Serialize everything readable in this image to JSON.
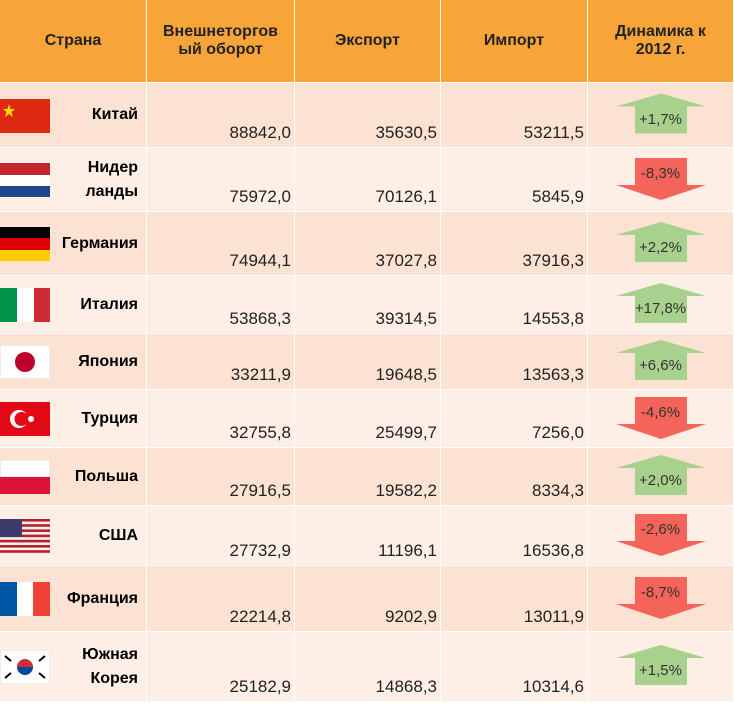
{
  "table": {
    "header": [
      "Страна",
      "Внешнеторгов\nый оборот",
      "Экспорт",
      "Импорт",
      "Динамика к\n2012 г."
    ],
    "rows": [
      {
        "country": "Китай",
        "turnover": "88842,0",
        "export": "35630,5",
        "import": "53211,5",
        "dynamics": "+1,7%",
        "direction": "up"
      },
      {
        "country": "Нидер\nланды",
        "turnover": "75972,0",
        "export": "70126,1",
        "import": "5845,9",
        "dynamics": "-8,3%",
        "direction": "down"
      },
      {
        "country": "Германия",
        "turnover": "74944,1",
        "export": "37027,8",
        "import": "37916,3",
        "dynamics": "+2,2%",
        "direction": "up"
      },
      {
        "country": "Италия",
        "turnover": "53868,3",
        "export": "39314,5",
        "import": "14553,8",
        "dynamics": "+17,8%",
        "direction": "up"
      },
      {
        "country": "Япония",
        "turnover": "33211,9",
        "export": "19648,5",
        "import": "13563,3",
        "dynamics": "+6,6%",
        "direction": "up"
      },
      {
        "country": "Турция",
        "turnover": "32755,8",
        "export": "25499,7",
        "import": "7256,0",
        "dynamics": "-4,6%",
        "direction": "down"
      },
      {
        "country": "Польша",
        "turnover": "27916,5",
        "export": "19582,2",
        "import": "8334,3",
        "dynamics": "+2,0%",
        "direction": "up"
      },
      {
        "country": "США",
        "turnover": "27732,9",
        "export": "11196,1",
        "import": "16536,8",
        "dynamics": "-2,6%",
        "direction": "down"
      },
      {
        "country": "Франция",
        "turnover": "22214,8",
        "export": "9202,9",
        "import": "13011,9",
        "dynamics": "-8,7%",
        "direction": "down"
      },
      {
        "country": "Южная\nКорея",
        "turnover": "25182,9",
        "export": "14868,3",
        "import": "10314,6",
        "dynamics": "+1,5%",
        "direction": "up"
      }
    ]
  }
}
